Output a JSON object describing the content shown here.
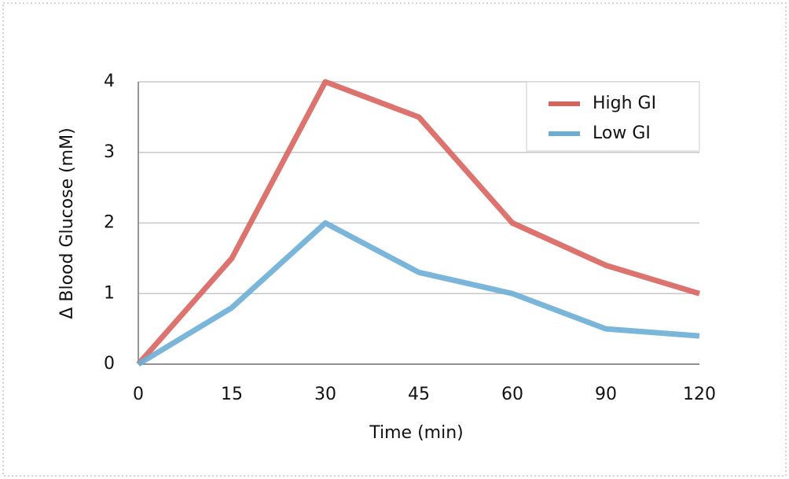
{
  "chart_data": {
    "type": "line",
    "x_label": "Time (min)",
    "y_label": "Δ Blood Glucose (mM)",
    "categories": [
      "0",
      "15",
      "30",
      "45",
      "60",
      "90",
      "120"
    ],
    "series": [
      {
        "name": "High GI",
        "color": "#d9645e",
        "values": [
          0,
          1.5,
          4,
          3.5,
          2,
          1.4,
          1
        ]
      },
      {
        "name": "Low GI",
        "color": "#6aaed6",
        "values": [
          0,
          0.8,
          2,
          1.3,
          1,
          0.5,
          0.4
        ]
      }
    ],
    "ylim": [
      0,
      4
    ],
    "yticks": [
      0,
      1,
      2,
      3,
      4
    ],
    "grid": true,
    "legend": "top-right"
  }
}
